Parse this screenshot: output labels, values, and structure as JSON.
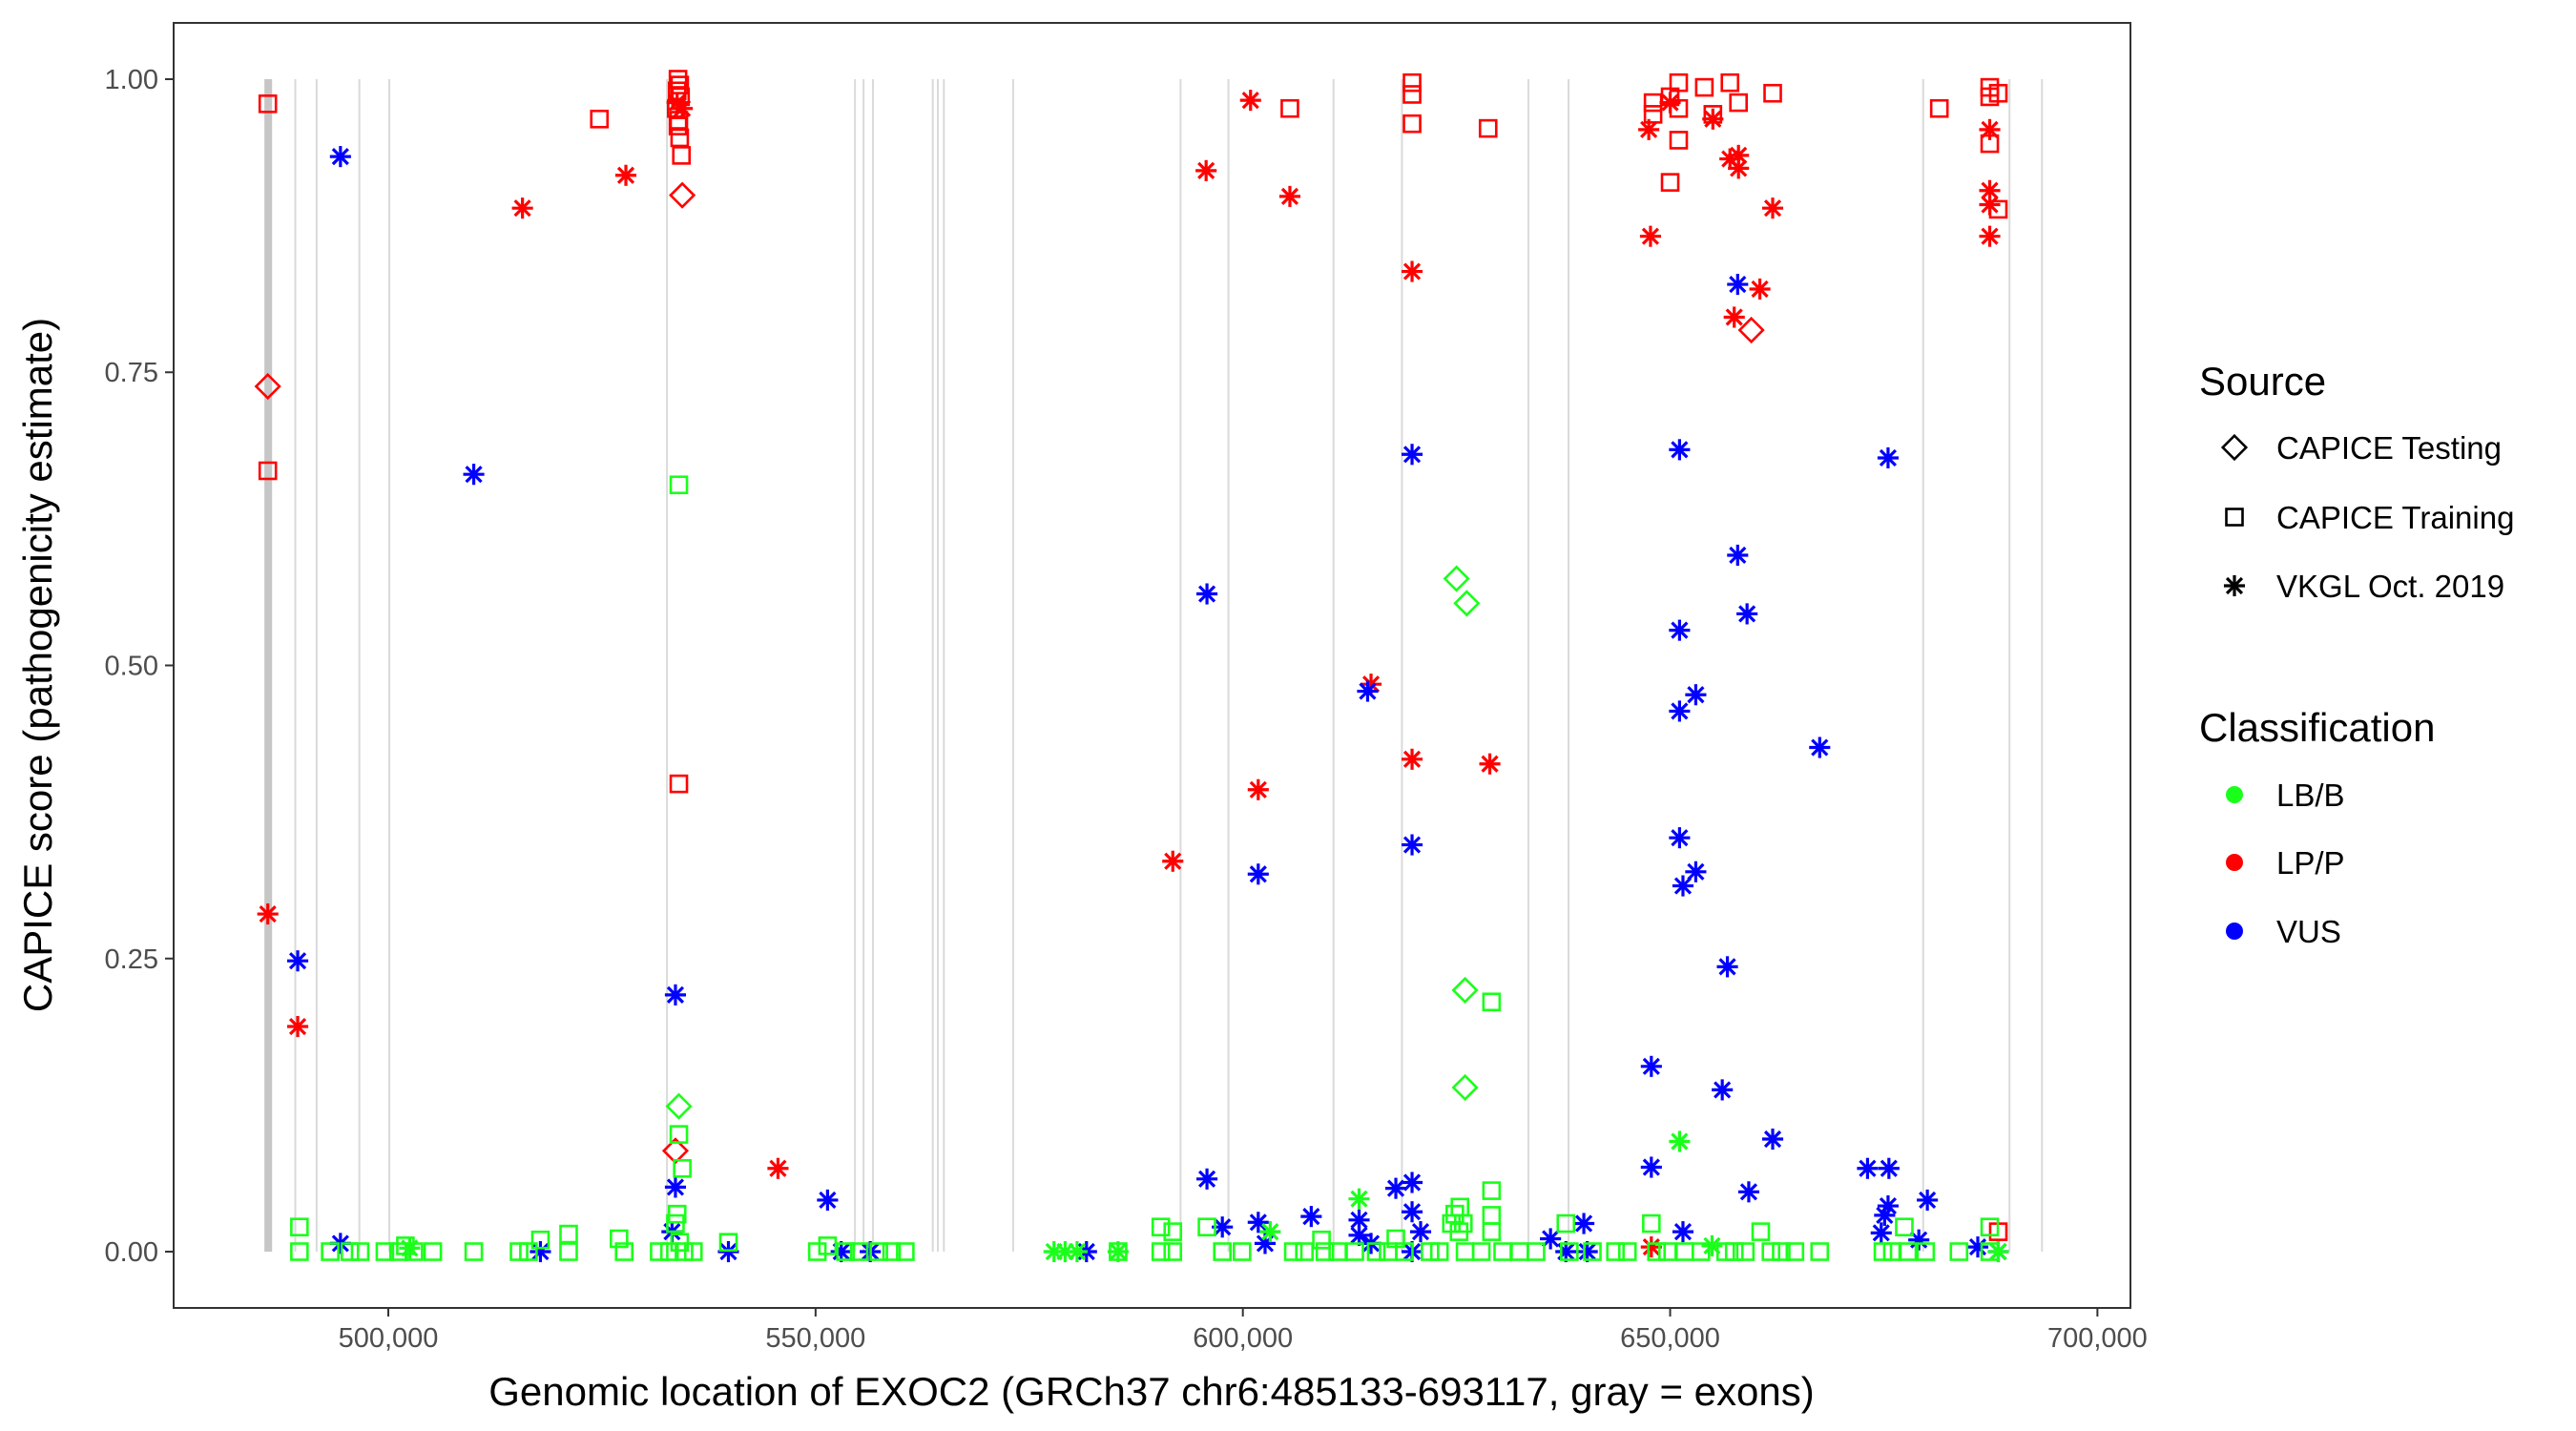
{
  "chart_data": {
    "type": "scatter",
    "xlabel": "Genomic location of EXOC2 (GRCh37 chr6:485133-693117, gray = exons)",
    "ylabel": "CAPICE score (pathogenicity estimate)",
    "xlim": [
      474880,
      703865
    ],
    "ylim": [
      -0.048,
      1.048
    ],
    "x_ticks": [
      500000,
      550000,
      600000,
      650000,
      700000
    ],
    "x_tick_labels": [
      "500,000",
      "550,000",
      "600,000",
      "650,000",
      "700,000"
    ],
    "y_ticks": [
      0,
      0.25,
      0.5,
      0.75,
      1
    ],
    "y_tick_labels": [
      "0.00",
      "0.25",
      "0.50",
      "0.75",
      "1.00"
    ],
    "grid": false,
    "legend_placement": "right",
    "legend": {
      "source_title": "Source",
      "sources": [
        {
          "label": "CAPICE Testing",
          "shape": "diamond"
        },
        {
          "label": "CAPICE Training",
          "shape": "square"
        },
        {
          "label": "VKGL Oct. 2019",
          "shape": "asterisk"
        }
      ],
      "class_title": "Classification",
      "classes": [
        {
          "label": "LB/B",
          "color": "#1aff1a"
        },
        {
          "label": "LP/P",
          "color": "#ff0000"
        },
        {
          "label": "VUS",
          "color": "#0000ff"
        }
      ]
    },
    "exons": [
      [
        485500,
        486400
      ],
      [
        489000,
        489100
      ],
      [
        491500,
        491600
      ],
      [
        496500,
        496600
      ],
      [
        500000,
        500100
      ],
      [
        532500,
        532650
      ],
      [
        554500,
        554600
      ],
      [
        555500,
        555600
      ],
      [
        556600,
        556700
      ],
      [
        563600,
        563700
      ],
      [
        564200,
        564300
      ],
      [
        564900,
        565000
      ],
      [
        573000,
        573100
      ],
      [
        592600,
        592700
      ],
      [
        598200,
        598300
      ],
      [
        610500,
        610600
      ],
      [
        618500,
        618600
      ],
      [
        633300,
        633450
      ],
      [
        638000,
        638150
      ],
      [
        679500,
        679700
      ],
      [
        689600,
        689700
      ],
      [
        693400,
        693500
      ]
    ],
    "points_columns": [
      "position",
      "score",
      "source_index",
      "class_index"
    ],
    "points": [
      [
        485900,
        0.979,
        1,
        1
      ],
      [
        485900,
        0.738,
        0,
        1
      ],
      [
        485900,
        0.666,
        1,
        1
      ],
      [
        485900,
        0.288,
        2,
        1
      ],
      [
        489400,
        0.192,
        2,
        1
      ],
      [
        515700,
        0.89,
        2,
        1
      ],
      [
        524700,
        0.966,
        1,
        1
      ],
      [
        527800,
        0.918,
        2,
        1
      ],
      [
        533900,
        1.0,
        1,
        1
      ],
      [
        534100,
        0.995,
        1,
        1
      ],
      [
        533800,
        0.99,
        1,
        1
      ],
      [
        534200,
        0.985,
        1,
        1
      ],
      [
        533700,
        0.975,
        1,
        1
      ],
      [
        534000,
        0.965,
        1,
        1
      ],
      [
        533900,
        0.96,
        1,
        1
      ],
      [
        534100,
        0.95,
        1,
        1
      ],
      [
        534300,
        0.935,
        1,
        1
      ],
      [
        533800,
        0.98,
        2,
        1
      ],
      [
        534400,
        0.975,
        2,
        1
      ],
      [
        534400,
        0.901,
        0,
        1
      ],
      [
        534000,
        0.399,
        1,
        1
      ],
      [
        533600,
        0.086,
        0,
        1
      ],
      [
        545600,
        0.071,
        2,
        1
      ],
      [
        595700,
        0.922,
        2,
        1
      ],
      [
        591800,
        0.333,
        2,
        1
      ],
      [
        600900,
        0.982,
        2,
        1
      ],
      [
        605500,
        0.975,
        1,
        1
      ],
      [
        605500,
        0.9,
        2,
        1
      ],
      [
        601800,
        0.394,
        2,
        1
      ],
      [
        615000,
        0.484,
        2,
        1
      ],
      [
        619800,
        0.997,
        1,
        1
      ],
      [
        619800,
        0.987,
        1,
        1
      ],
      [
        619800,
        0.962,
        1,
        1
      ],
      [
        619800,
        0.836,
        2,
        1
      ],
      [
        619800,
        0.42,
        2,
        1
      ],
      [
        628700,
        0.958,
        1,
        1
      ],
      [
        628900,
        0.416,
        2,
        1
      ],
      [
        648000,
        0.98,
        1,
        1
      ],
      [
        648000,
        0.97,
        1,
        1
      ],
      [
        650000,
        0.985,
        1,
        1
      ],
      [
        651000,
        0.997,
        1,
        1
      ],
      [
        651000,
        0.975,
        1,
        1
      ],
      [
        651000,
        0.948,
        1,
        1
      ],
      [
        650000,
        0.912,
        1,
        1
      ],
      [
        654000,
        0.993,
        1,
        1
      ],
      [
        657000,
        0.997,
        1,
        1
      ],
      [
        658000,
        0.98,
        1,
        1
      ],
      [
        662000,
        0.988,
        1,
        1
      ],
      [
        655000,
        0.97,
        1,
        1
      ],
      [
        647500,
        0.957,
        2,
        1
      ],
      [
        650000,
        0.98,
        2,
        1
      ],
      [
        655000,
        0.966,
        2,
        1
      ],
      [
        657000,
        0.932,
        2,
        1
      ],
      [
        658000,
        0.935,
        2,
        1
      ],
      [
        658000,
        0.924,
        2,
        1
      ],
      [
        662000,
        0.89,
        2,
        1
      ],
      [
        647700,
        0.866,
        2,
        1
      ],
      [
        657500,
        0.797,
        2,
        1
      ],
      [
        660500,
        0.821,
        2,
        1
      ],
      [
        659500,
        0.786,
        0,
        1
      ],
      [
        681500,
        0.975,
        1,
        1
      ],
      [
        687400,
        0.993,
        1,
        1
      ],
      [
        687400,
        0.985,
        1,
        1
      ],
      [
        687400,
        0.945,
        1,
        1
      ],
      [
        688400,
        0.988,
        1,
        1
      ],
      [
        688400,
        0.889,
        1,
        1
      ],
      [
        687400,
        0.957,
        2,
        1
      ],
      [
        687400,
        0.905,
        2,
        1
      ],
      [
        687400,
        0.893,
        2,
        1
      ],
      [
        687400,
        0.866,
        2,
        1
      ],
      [
        647800,
        0.004,
        2,
        1
      ],
      [
        688400,
        0.017,
        1,
        1
      ],
      [
        494400,
        0.934,
        2,
        2
      ],
      [
        510000,
        0.663,
        2,
        2
      ],
      [
        489400,
        0.248,
        2,
        2
      ],
      [
        494400,
        0.007,
        2,
        2
      ],
      [
        533600,
        0.219,
        2,
        2
      ],
      [
        533600,
        0.055,
        2,
        2
      ],
      [
        533200,
        0.017,
        2,
        2
      ],
      [
        517800,
        0.0,
        2,
        2
      ],
      [
        539800,
        0.0,
        2,
        2
      ],
      [
        551400,
        0.044,
        2,
        2
      ],
      [
        553000,
        0.0,
        2,
        2
      ],
      [
        556400,
        0.0,
        2,
        2
      ],
      [
        581700,
        0.0,
        2,
        2
      ],
      [
        595800,
        0.561,
        2,
        2
      ],
      [
        595800,
        0.062,
        2,
        2
      ],
      [
        597600,
        0.021,
        2,
        2
      ],
      [
        601800,
        0.322,
        2,
        2
      ],
      [
        601800,
        0.025,
        2,
        2
      ],
      [
        602600,
        0.007,
        2,
        2
      ],
      [
        608000,
        0.03,
        2,
        2
      ],
      [
        614600,
        0.478,
        2,
        2
      ],
      [
        613600,
        0.027,
        2,
        2
      ],
      [
        613600,
        0.014,
        2,
        2
      ],
      [
        615000,
        0.007,
        2,
        2
      ],
      [
        617900,
        0.054,
        2,
        2
      ],
      [
        619800,
        0.059,
        2,
        2
      ],
      [
        619800,
        0.68,
        2,
        2
      ],
      [
        619800,
        0.347,
        2,
        2
      ],
      [
        619800,
        0.034,
        2,
        2
      ],
      [
        619800,
        0.0,
        2,
        2
      ],
      [
        620800,
        0.017,
        2,
        2
      ],
      [
        636000,
        0.011,
        2,
        2
      ],
      [
        637800,
        0.0,
        2,
        2
      ],
      [
        639900,
        0.024,
        2,
        2
      ],
      [
        640300,
        0.0,
        2,
        2
      ],
      [
        651100,
        0.684,
        2,
        2
      ],
      [
        651100,
        0.53,
        2,
        2
      ],
      [
        651100,
        0.461,
        2,
        2
      ],
      [
        653000,
        0.475,
        2,
        2
      ],
      [
        651100,
        0.353,
        2,
        2
      ],
      [
        651500,
        0.312,
        2,
        2
      ],
      [
        653000,
        0.324,
        2,
        2
      ],
      [
        656700,
        0.243,
        2,
        2
      ],
      [
        656100,
        0.138,
        2,
        2
      ],
      [
        647800,
        0.158,
        2,
        2
      ],
      [
        647800,
        0.072,
        2,
        2
      ],
      [
        651500,
        0.017,
        2,
        2
      ],
      [
        657900,
        0.825,
        2,
        2
      ],
      [
        657900,
        0.594,
        2,
        2
      ],
      [
        659000,
        0.544,
        2,
        2
      ],
      [
        659200,
        0.051,
        2,
        2
      ],
      [
        662000,
        0.096,
        2,
        2
      ],
      [
        667500,
        0.43,
        2,
        2
      ],
      [
        675500,
        0.677,
        2,
        2
      ],
      [
        673100,
        0.071,
        2,
        2
      ],
      [
        675600,
        0.071,
        2,
        2
      ],
      [
        675500,
        0.039,
        2,
        2
      ],
      [
        675100,
        0.031,
        2,
        2
      ],
      [
        674700,
        0.016,
        2,
        2
      ],
      [
        680100,
        0.044,
        2,
        2
      ],
      [
        679100,
        0.01,
        2,
        2
      ],
      [
        686000,
        0.004,
        2,
        2
      ],
      [
        688400,
        0.0,
        2,
        2
      ],
      [
        625000,
        0.574,
        0,
        0
      ],
      [
        626200,
        0.553,
        0,
        0
      ],
      [
        626000,
        0.223,
        0,
        0
      ],
      [
        626000,
        0.14,
        0,
        0
      ],
      [
        534000,
        0.124,
        0,
        0
      ],
      [
        629100,
        0.213,
        1,
        0
      ],
      [
        534000,
        0.654,
        1,
        0
      ],
      [
        534000,
        0.1,
        1,
        0
      ],
      [
        534400,
        0.071,
        1,
        0
      ],
      [
        651100,
        0.094,
        2,
        0
      ],
      [
        613600,
        0.045,
        2,
        0
      ],
      [
        489600,
        0.021,
        1,
        0
      ],
      [
        489600,
        0.0,
        1,
        0
      ],
      [
        493200,
        0.0,
        1,
        0
      ],
      [
        495500,
        0.0,
        1,
        0
      ],
      [
        496700,
        0.0,
        1,
        0
      ],
      [
        499600,
        0.0,
        1,
        0
      ],
      [
        501200,
        0.0,
        1,
        0
      ],
      [
        502000,
        0.005,
        1,
        0
      ],
      [
        503000,
        0.0,
        1,
        0
      ],
      [
        502500,
        0.003,
        2,
        0
      ],
      [
        505200,
        0.0,
        1,
        0
      ],
      [
        510000,
        0.0,
        1,
        0
      ],
      [
        515300,
        0.0,
        1,
        0
      ],
      [
        516400,
        0.0,
        1,
        0
      ],
      [
        517800,
        0.01,
        1,
        0
      ],
      [
        521100,
        0.015,
        1,
        0
      ],
      [
        521100,
        0.0,
        1,
        0
      ],
      [
        527000,
        0.011,
        1,
        0
      ],
      [
        527600,
        0.0,
        1,
        0
      ],
      [
        531700,
        0.0,
        1,
        0
      ],
      [
        532900,
        0.0,
        1,
        0
      ],
      [
        533600,
        0.024,
        1,
        0
      ],
      [
        533800,
        0.032,
        1,
        0
      ],
      [
        534100,
        0.008,
        1,
        0
      ],
      [
        534600,
        0.0,
        1,
        0
      ],
      [
        535700,
        0.0,
        1,
        0
      ],
      [
        539800,
        0.008,
        1,
        0
      ],
      [
        550200,
        0.0,
        1,
        0
      ],
      [
        551400,
        0.005,
        1,
        0
      ],
      [
        553500,
        0.0,
        1,
        0
      ],
      [
        555100,
        0.0,
        1,
        0
      ],
      [
        557400,
        0.0,
        1,
        0
      ],
      [
        558900,
        0.0,
        1,
        0
      ],
      [
        560500,
        0.0,
        1,
        0
      ],
      [
        577900,
        0.0,
        2,
        0
      ],
      [
        579200,
        0.0,
        2,
        0
      ],
      [
        580600,
        0.0,
        2,
        0
      ],
      [
        585400,
        0.0,
        2,
        0
      ],
      [
        585400,
        0.0,
        1,
        0
      ],
      [
        590400,
        0.021,
        1,
        0
      ],
      [
        590400,
        0.0,
        1,
        0
      ],
      [
        591800,
        0.017,
        1,
        0
      ],
      [
        591800,
        0.0,
        1,
        0
      ],
      [
        595800,
        0.021,
        1,
        0
      ],
      [
        597600,
        0.0,
        1,
        0
      ],
      [
        599900,
        0.0,
        1,
        0
      ],
      [
        603200,
        0.017,
        2,
        0
      ],
      [
        605900,
        0.0,
        1,
        0
      ],
      [
        607200,
        0.0,
        1,
        0
      ],
      [
        609200,
        0.01,
        1,
        0
      ],
      [
        609600,
        0.0,
        1,
        0
      ],
      [
        611100,
        0.0,
        1,
        0
      ],
      [
        613100,
        0.0,
        1,
        0
      ],
      [
        615600,
        0.0,
        1,
        0
      ],
      [
        617000,
        0.0,
        1,
        0
      ],
      [
        617900,
        0.011,
        1,
        0
      ],
      [
        618900,
        0.0,
        1,
        0
      ],
      [
        621900,
        0.0,
        1,
        0
      ],
      [
        623000,
        0.0,
        1,
        0
      ],
      [
        624400,
        0.024,
        1,
        0
      ],
      [
        624800,
        0.032,
        1,
        0
      ],
      [
        625300,
        0.017,
        1,
        0
      ],
      [
        625400,
        0.038,
        1,
        0
      ],
      [
        625800,
        0.024,
        1,
        0
      ],
      [
        626000,
        0.0,
        1,
        0
      ],
      [
        627900,
        0.0,
        1,
        0
      ],
      [
        629100,
        0.052,
        1,
        0
      ],
      [
        629100,
        0.031,
        1,
        0
      ],
      [
        629100,
        0.017,
        1,
        0
      ],
      [
        630400,
        0.0,
        1,
        0
      ],
      [
        632400,
        0.0,
        1,
        0
      ],
      [
        634300,
        0.0,
        1,
        0
      ],
      [
        637800,
        0.024,
        1,
        0
      ],
      [
        638200,
        0.0,
        1,
        0
      ],
      [
        640900,
        0.0,
        1,
        0
      ],
      [
        643600,
        0.0,
        1,
        0
      ],
      [
        645000,
        0.0,
        1,
        0
      ],
      [
        647800,
        0.024,
        1,
        0
      ],
      [
        648400,
        0.0,
        1,
        0
      ],
      [
        649700,
        0.0,
        1,
        0
      ],
      [
        651700,
        0.0,
        1,
        0
      ],
      [
        653600,
        0.0,
        1,
        0
      ],
      [
        654900,
        0.005,
        2,
        0
      ],
      [
        656500,
        0.0,
        1,
        0
      ],
      [
        657500,
        0.0,
        1,
        0
      ],
      [
        658800,
        0.0,
        1,
        0
      ],
      [
        660600,
        0.017,
        1,
        0
      ],
      [
        661800,
        0.0,
        1,
        0
      ],
      [
        663000,
        0.0,
        1,
        0
      ],
      [
        664600,
        0.0,
        1,
        0
      ],
      [
        667500,
        0.0,
        1,
        0
      ],
      [
        674900,
        0.0,
        1,
        0
      ],
      [
        676000,
        0.0,
        1,
        0
      ],
      [
        677400,
        0.021,
        1,
        0
      ],
      [
        677800,
        0.0,
        1,
        0
      ],
      [
        679900,
        0.0,
        1,
        0
      ],
      [
        683800,
        0.0,
        1,
        0
      ],
      [
        687400,
        0.021,
        1,
        0
      ],
      [
        687400,
        0.0,
        1,
        0
      ],
      [
        688400,
        0.0,
        2,
        0
      ]
    ]
  }
}
